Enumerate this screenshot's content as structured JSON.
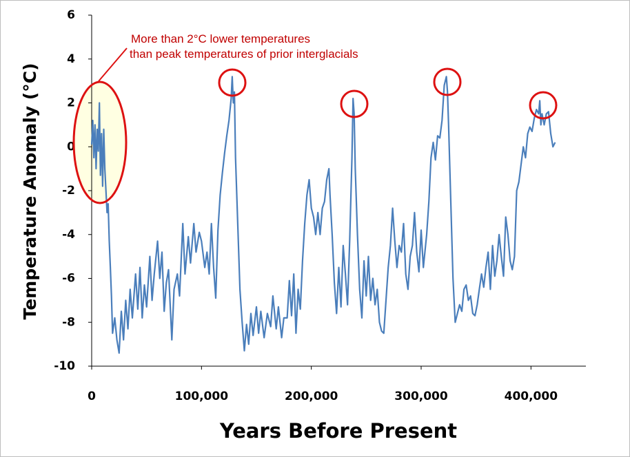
{
  "chart_data": {
    "type": "line",
    "xlabel": "Years Before Present",
    "ylabel": "Temperature Anomaly (°C)",
    "annotations": [
      "More than 2°C lower temperatures",
      "than peak temperatures of prior interglacials"
    ],
    "color": "#4a7ebb",
    "xlim": [
      0,
      450000
    ],
    "ylim": [
      -10,
      6
    ],
    "xticks": [
      0,
      {
        "value": 100000,
        "label": "100,000"
      },
      {
        "value": 200000,
        "label": "200,000"
      },
      {
        "value": 300000,
        "label": "300,000"
      },
      {
        "value": 400000,
        "label": "400,000"
      }
    ],
    "yticks": [
      -10,
      -8,
      -6,
      -4,
      -2,
      0,
      2,
      4,
      6
    ],
    "x": [
      0,
      1000,
      2000,
      3000,
      4000,
      5000,
      6000,
      7000,
      8000,
      9000,
      10000,
      11000,
      12000,
      13000,
      14000,
      15000,
      16000,
      17000,
      18000,
      19000,
      21000,
      23000,
      25000,
      27000,
      29000,
      31000,
      33000,
      35000,
      37000,
      40000,
      42000,
      44000,
      46000,
      48000,
      50000,
      53000,
      55000,
      57000,
      60000,
      62000,
      64000,
      66000,
      68000,
      70000,
      73000,
      75000,
      78000,
      80000,
      83000,
      85000,
      88000,
      90000,
      93000,
      95000,
      98000,
      100000,
      103000,
      105000,
      107000,
      109000,
      111000,
      113000,
      115000,
      117000,
      119000,
      121000,
      123000,
      125000,
      127000,
      128000,
      129000,
      130000,
      131000,
      133000,
      135000,
      137000,
      139000,
      141000,
      143000,
      145000,
      147000,
      150000,
      152000,
      154000,
      157000,
      160000,
      163000,
      165000,
      168000,
      170000,
      173000,
      175000,
      178000,
      180000,
      182000,
      184000,
      186000,
      188000,
      190000,
      192000,
      194000,
      196000,
      198000,
      200000,
      202000,
      204000,
      206000,
      208000,
      210000,
      212000,
      214000,
      216000,
      217000,
      219000,
      221000,
      223000,
      225000,
      227000,
      229000,
      231000,
      233000,
      235000,
      237000,
      238000,
      239000,
      240000,
      242000,
      244000,
      246000,
      248000,
      250000,
      252000,
      254000,
      256000,
      258000,
      260000,
      262000,
      264000,
      266000,
      268000,
      270000,
      272000,
      274000,
      276000,
      278000,
      280000,
      282000,
      284000,
      286000,
      288000,
      290000,
      292000,
      294000,
      296000,
      298000,
      300000,
      302000,
      305000,
      307000,
      309000,
      311000,
      313000,
      315000,
      317000,
      319000,
      321000,
      323000,
      324000,
      325000,
      327000,
      329000,
      331000,
      333000,
      335000,
      337000,
      339000,
      341000,
      343000,
      345000,
      347000,
      349000,
      351000,
      353000,
      355000,
      357000,
      359000,
      361000,
      363000,
      365000,
      367000,
      369000,
      371000,
      373000,
      375000,
      377000,
      379000,
      381000,
      383000,
      385000,
      387000,
      389000,
      391000,
      393000,
      395000,
      397000,
      399000,
      401000,
      403000,
      405000,
      407000,
      408000,
      409000,
      410000,
      412000,
      414000,
      416000,
      418000,
      420000,
      422000
    ],
    "values": [
      0.1,
      1.2,
      -0.5,
      1.0,
      -1.0,
      0.8,
      -0.2,
      2.0,
      -1.3,
      0.6,
      -1.8,
      0.8,
      -1.0,
      -2.0,
      -3.0,
      -2.6,
      -4.3,
      -5.5,
      -6.8,
      -8.5,
      -7.8,
      -8.8,
      -9.4,
      -7.5,
      -8.8,
      -7.0,
      -8.3,
      -6.5,
      -7.8,
      -5.8,
      -7.4,
      -5.5,
      -7.8,
      -6.3,
      -7.3,
      -5.0,
      -7.0,
      -5.8,
      -4.3,
      -6.0,
      -4.8,
      -7.5,
      -6.2,
      -5.6,
      -8.8,
      -6.5,
      -5.8,
      -6.8,
      -3.5,
      -5.8,
      -4.1,
      -5.3,
      -3.5,
      -4.8,
      -3.9,
      -4.3,
      -5.5,
      -4.8,
      -5.8,
      -3.5,
      -5.5,
      -6.9,
      -3.8,
      -2.2,
      -1.2,
      -0.3,
      0.5,
      1.2,
      2.2,
      3.2,
      2.0,
      2.5,
      -0.5,
      -3.5,
      -6.5,
      -8.0,
      -9.3,
      -8.1,
      -9.0,
      -7.6,
      -8.6,
      -7.3,
      -8.5,
      -7.5,
      -8.7,
      -7.6,
      -8.2,
      -6.8,
      -8.3,
      -7.3,
      -8.7,
      -7.8,
      -7.8,
      -6.1,
      -7.7,
      -5.8,
      -8.5,
      -6.5,
      -7.4,
      -5.2,
      -3.5,
      -2.2,
      -1.5,
      -2.8,
      -3.2,
      -4.0,
      -3.0,
      -4.0,
      -2.8,
      -2.5,
      -1.5,
      -1.0,
      -2.2,
      -4.0,
      -6.2,
      -7.6,
      -5.5,
      -7.3,
      -4.5,
      -5.8,
      -7.2,
      -4.2,
      -0.5,
      2.2,
      1.5,
      -1.0,
      -4.0,
      -6.5,
      -7.8,
      -5.2,
      -6.8,
      -5.0,
      -7.0,
      -6.0,
      -7.2,
      -6.5,
      -8.0,
      -8.4,
      -8.5,
      -7.0,
      -5.5,
      -4.5,
      -2.8,
      -4.3,
      -5.5,
      -4.5,
      -4.8,
      -3.5,
      -5.8,
      -6.5,
      -5.0,
      -4.5,
      -3.0,
      -4.8,
      -5.7,
      -3.8,
      -5.5,
      -4.0,
      -2.5,
      -0.5,
      0.2,
      -0.6,
      0.5,
      0.4,
      1.2,
      2.8,
      3.2,
      2.5,
      1.0,
      -2.5,
      -6.0,
      -8.0,
      -7.6,
      -7.2,
      -7.5,
      -6.5,
      -6.3,
      -7.0,
      -6.8,
      -7.6,
      -7.7,
      -7.2,
      -6.5,
      -5.8,
      -6.4,
      -5.5,
      -4.8,
      -6.5,
      -4.5,
      -5.9,
      -5.2,
      -4.0,
      -5.0,
      -5.9,
      -3.2,
      -4.0,
      -5.2,
      -5.6,
      -5.0,
      -2.0,
      -1.6,
      -0.8,
      0.0,
      -0.5,
      0.6,
      0.9,
      0.7,
      1.3,
      1.7,
      1.5,
      2.1,
      1.0,
      1.5,
      1.0,
      1.5,
      1.6,
      0.6,
      0.0,
      0.2
    ]
  }
}
